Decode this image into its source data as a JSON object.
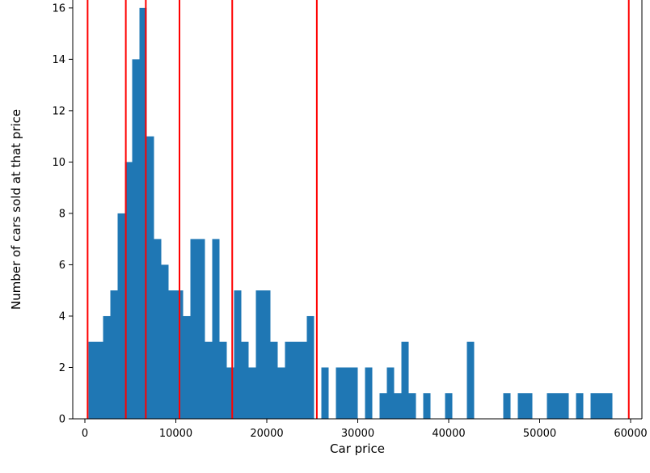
{
  "chart_data": {
    "type": "bar",
    "title": "",
    "xlabel": "Car price",
    "ylabel": "Number of cars sold at that price",
    "bin_start": 400,
    "bin_width": 800,
    "counts": [
      3,
      3,
      4,
      5,
      8,
      10,
      14,
      16,
      11,
      7,
      6,
      5,
      5,
      4,
      7,
      7,
      3,
      7,
      3,
      2,
      5,
      3,
      2,
      5,
      5,
      3,
      2,
      3,
      3,
      3,
      4,
      0,
      2,
      0,
      2,
      2,
      2,
      0,
      2,
      0,
      1,
      2,
      1,
      3,
      1,
      0,
      1,
      0,
      0,
      1,
      0,
      0,
      3,
      0,
      0,
      0,
      0,
      1,
      0,
      1,
      1,
      0,
      0,
      1,
      1,
      1,
      0,
      1,
      0,
      1,
      1,
      1
    ],
    "vlines": [
      300,
      4500,
      6700,
      10400,
      16200,
      25500,
      59800
    ],
    "x_ticks": [
      0,
      10000,
      20000,
      30000,
      40000,
      50000,
      60000
    ],
    "y_ticks": [
      0,
      2,
      4,
      6,
      8,
      10,
      12,
      14,
      16
    ],
    "xlim": [
      -1333,
      61244
    ],
    "ylim": [
      0,
      16.31
    ],
    "bar_color": "#1f77b4",
    "vline_color": "#ff0000",
    "axis_color": "#000000",
    "background_color": "#ffffff",
    "grid": false,
    "legend": "none"
  }
}
